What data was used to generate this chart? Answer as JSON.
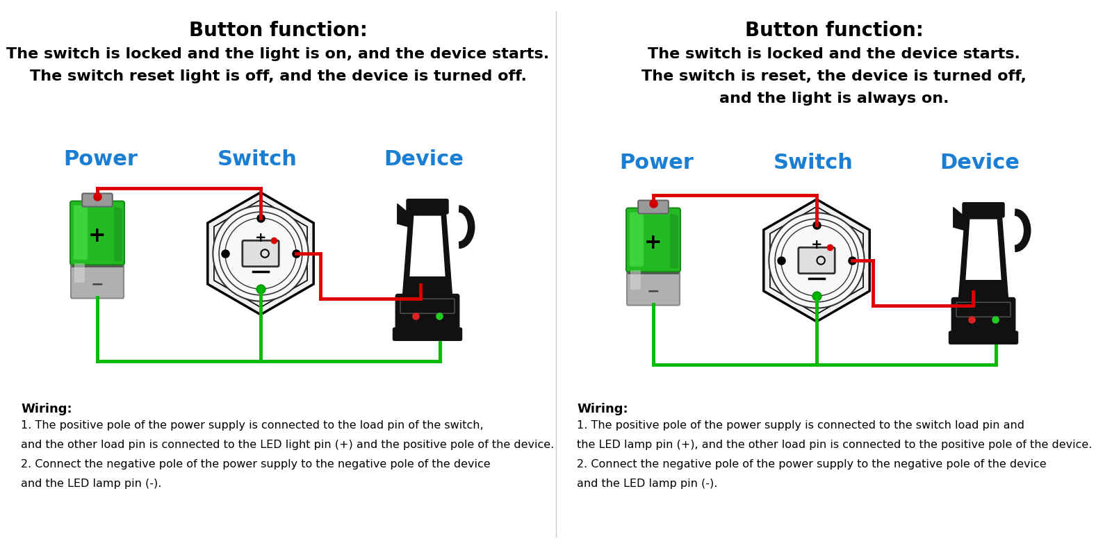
{
  "bg_color": "#ffffff",
  "panel1": {
    "title": "Button function:",
    "subtitle_lines": [
      "The switch is locked and the light is on, and the device starts.",
      "The switch reset light is off, and the device is turned off."
    ],
    "labels": [
      "Power",
      "Switch",
      "Device"
    ],
    "label_color": "#1a7fd4",
    "wiring_title": "Wiring:",
    "wiring_lines": [
      "1. The positive pole of the power supply is connected to the load pin of the switch,",
      "and the other load pin is connected to the LED light pin (+) and the positive pole of the device.",
      "2. Connect the negative pole of the power supply to the negative pole of the device",
      "and the LED lamp pin (-)."
    ]
  },
  "panel2": {
    "title": "Button function:",
    "subtitle_lines": [
      "The switch is locked and the device starts.",
      "The switch is reset, the device is turned off,",
      "and the light is always on."
    ],
    "labels": [
      "Power",
      "Switch",
      "Device"
    ],
    "label_color": "#1a7fd4",
    "wiring_title": "Wiring:",
    "wiring_lines": [
      "1. The positive pole of the power supply is connected to the switch load pin and",
      "the LED lamp pin (+), and the other load pin is connected to the positive pole of the device.",
      "2. Connect the negative pole of the power supply to the negative pole of the device",
      "and the LED lamp pin (-)."
    ]
  }
}
